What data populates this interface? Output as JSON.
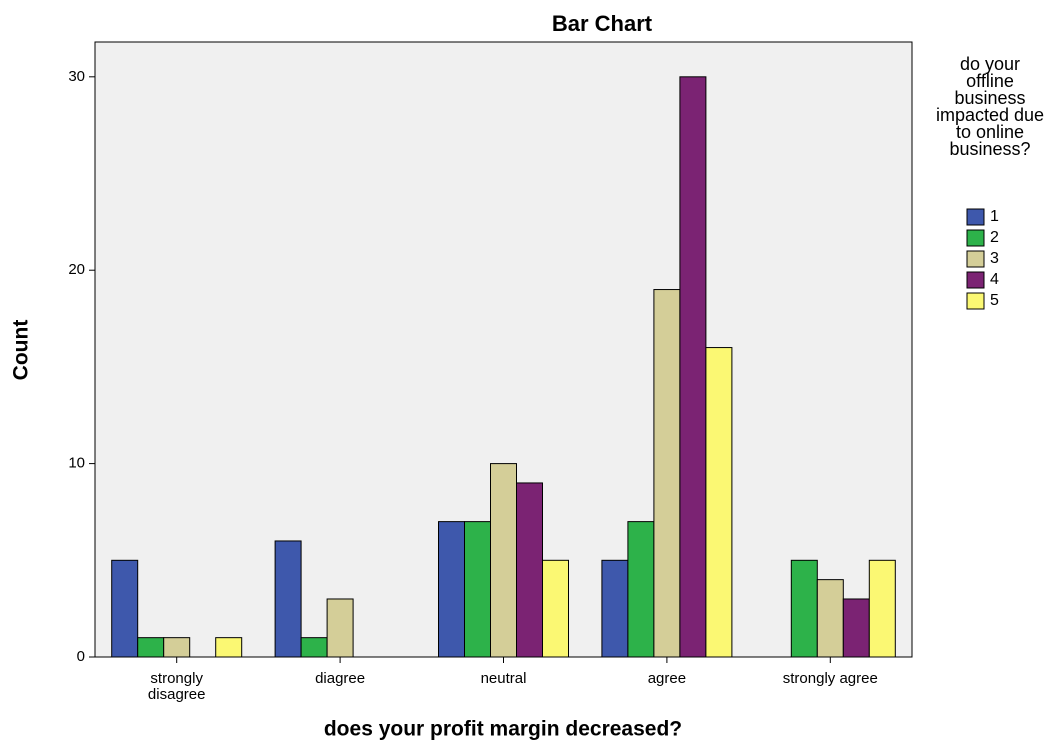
{
  "chart_data": {
    "type": "bar",
    "title": "Bar Chart",
    "x_label": "does your profit margin decreased?",
    "y_label": "Count",
    "legend_title": "do your offline business impacted due to online business?",
    "categories": [
      "strongly disagree",
      "diagree",
      "neutral",
      "agree",
      "strongly agree"
    ],
    "series": [
      {
        "name": "1",
        "color": "#3e58ac",
        "values": [
          5,
          6,
          7,
          5,
          0
        ]
      },
      {
        "name": "2",
        "color": "#2db24a",
        "values": [
          1,
          1,
          7,
          7,
          5
        ]
      },
      {
        "name": "3",
        "color": "#d4ce98",
        "values": [
          1,
          3,
          10,
          19,
          4
        ]
      },
      {
        "name": "4",
        "color": "#7b2373",
        "values": [
          0,
          0,
          9,
          30,
          3
        ]
      },
      {
        "name": "5",
        "color": "#fbf873",
        "values": [
          1,
          0,
          5,
          16,
          5
        ]
      }
    ],
    "ylim": [
      0,
      31.8
    ],
    "yticks": [
      0,
      10,
      20,
      30
    ],
    "legend": "right"
  }
}
